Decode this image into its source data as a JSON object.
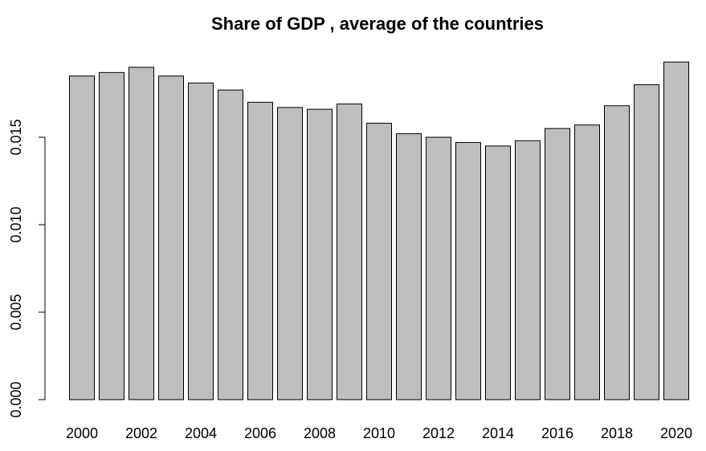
{
  "chart_data": {
    "type": "bar",
    "title": "Share of GDP , average of the countries",
    "xlabel": "",
    "ylabel": "",
    "categories": [
      "2000",
      "2001",
      "2002",
      "2003",
      "2004",
      "2005",
      "2006",
      "2007",
      "2008",
      "2009",
      "2010",
      "2011",
      "2012",
      "2013",
      "2014",
      "2015",
      "2016",
      "2017",
      "2018",
      "2019",
      "2020"
    ],
    "x_tick_labels": [
      "2000",
      "2002",
      "2004",
      "2006",
      "2008",
      "2010",
      "2012",
      "2014",
      "2016",
      "2018",
      "2020"
    ],
    "values": [
      0.0185,
      0.0187,
      0.019,
      0.0185,
      0.0181,
      0.0177,
      0.017,
      0.0167,
      0.0166,
      0.0169,
      0.0158,
      0.0152,
      0.015,
      0.0147,
      0.0145,
      0.0148,
      0.0155,
      0.0157,
      0.0168,
      0.018,
      0.0193
    ],
    "y_ticks": [
      0.0,
      0.005,
      0.01,
      0.015
    ],
    "y_tick_labels": [
      "0.000",
      "0.005",
      "0.010",
      "0.015"
    ],
    "ylim": [
      0,
      0.0193
    ],
    "grid": false,
    "legend": "none",
    "colors": {
      "bar_fill": "#bebebe",
      "bar_stroke": "#000000",
      "axis": "#000000",
      "text": "#000000",
      "background": "#ffffff"
    }
  }
}
